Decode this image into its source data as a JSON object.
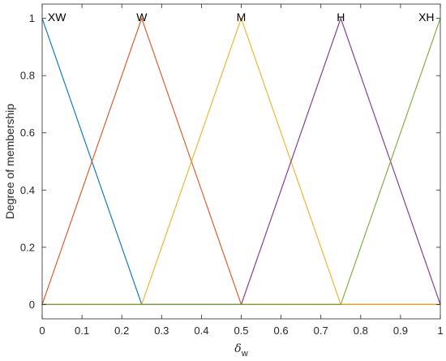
{
  "chart_data": {
    "type": "line",
    "title": "",
    "xlabel": {
      "symbol": "δ",
      "subscript": "w"
    },
    "ylabel": "Degree of membership",
    "xlim": [
      0,
      1
    ],
    "ylim": [
      -0.05,
      1.05
    ],
    "xticks": [
      0,
      0.1,
      0.2,
      0.3,
      0.4,
      0.5,
      0.6,
      0.7,
      0.8,
      0.9,
      1
    ],
    "xtick_labels": [
      "0",
      "0.1",
      "0.2",
      "0.3",
      "0.4",
      "0.5",
      "0.6",
      "0.7",
      "0.8",
      "0.9",
      "1"
    ],
    "yticks": [
      0,
      0.2,
      0.4,
      0.6,
      0.8,
      1
    ],
    "ytick_labels": [
      "0",
      "0.2",
      "0.4",
      "0.6",
      "0.8",
      "1"
    ],
    "grid": false,
    "series": [
      {
        "name": "XW",
        "color": "#0072BD",
        "x": [
          0,
          0,
          0.25,
          1
        ],
        "y": [
          1,
          1,
          0,
          0
        ],
        "label_x": 0.037
      },
      {
        "name": "W",
        "color": "#D95319",
        "x": [
          0,
          0.25,
          0.5,
          1
        ],
        "y": [
          0,
          1,
          0,
          0
        ],
        "label_x": 0.25
      },
      {
        "name": "M",
        "color": "#EDB120",
        "x": [
          0,
          0.25,
          0.5,
          0.75,
          1
        ],
        "y": [
          0,
          0,
          1,
          0,
          0
        ],
        "label_x": 0.5
      },
      {
        "name": "H",
        "color": "#7E2F8E",
        "x": [
          0,
          0.5,
          0.75,
          1
        ],
        "y": [
          0,
          0,
          1,
          0
        ],
        "label_x": 0.75
      },
      {
        "name": "XH",
        "color": "#77AC30",
        "x": [
          0,
          0.75,
          1,
          1
        ],
        "y": [
          0,
          0,
          1,
          1
        ],
        "label_x": 0.965
      }
    ]
  }
}
